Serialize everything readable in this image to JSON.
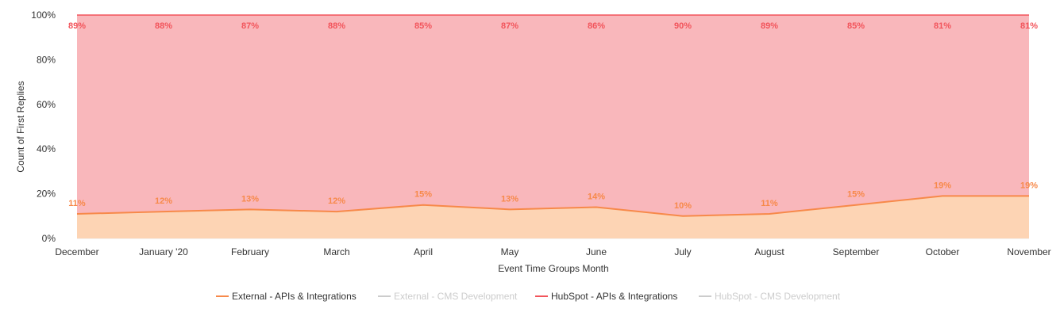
{
  "colors": {
    "external_line": "#f7894a",
    "external_fill": "#fdd4b4",
    "hubspot_line": "#f2545b",
    "hubspot_fill": "#f9b7bb",
    "muted_legend": "#cccccc",
    "grid": "#e8e8e8",
    "text": "#333333"
  },
  "chart_data": {
    "type": "area",
    "stacking": "percent",
    "categories": [
      "December",
      "January '20",
      "February",
      "March",
      "April",
      "May",
      "June",
      "July",
      "August",
      "September",
      "October",
      "November"
    ],
    "xlabel": "Event Time Groups Month",
    "ylabel": "Count of First Replies",
    "ylim": [
      0,
      100
    ],
    "y_ticks": [
      "0%",
      "20%",
      "40%",
      "60%",
      "80%",
      "100%"
    ],
    "grid": true,
    "legend_position": "bottom-center",
    "series": [
      {
        "name": "External - APIs & Integrations",
        "visible": true,
        "values": [
          11,
          12,
          13,
          12,
          15,
          13,
          14,
          10,
          11,
          15,
          19,
          19
        ],
        "labels": [
          "11%",
          "12%",
          "13%",
          "12%",
          "15%",
          "13%",
          "14%",
          "10%",
          "11%",
          "15%",
          "19%",
          "19%"
        ]
      },
      {
        "name": "External - CMS Development",
        "visible": false
      },
      {
        "name": "HubSpot - APIs & Integrations",
        "visible": true,
        "values": [
          89,
          88,
          87,
          88,
          85,
          87,
          86,
          90,
          89,
          85,
          81,
          81
        ],
        "labels": [
          "89%",
          "88%",
          "87%",
          "88%",
          "85%",
          "87%",
          "86%",
          "90%",
          "89%",
          "85%",
          "81%",
          "81%"
        ]
      },
      {
        "name": "HubSpot - CMS Development",
        "visible": false
      }
    ]
  }
}
